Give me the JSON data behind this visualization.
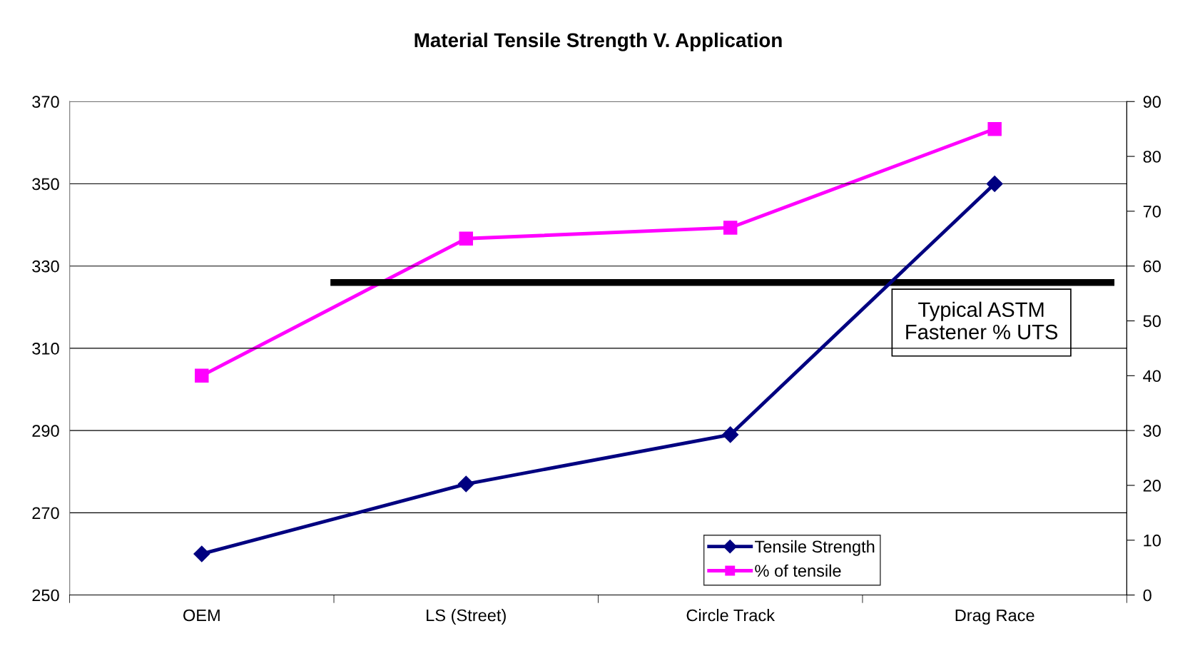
{
  "chart_data": {
    "type": "line",
    "title": "Material Tensile Strength V. Application",
    "categories": [
      "OEM",
      "LS (Street)",
      "Circle Track",
      "Drag Race"
    ],
    "series": [
      {
        "name": "Tensile Strength",
        "color": "#000080",
        "marker": "diamond",
        "values": [
          260,
          277,
          289,
          350
        ]
      },
      {
        "name": "% of tensile",
        "color": "#ff00ff",
        "marker": "square",
        "axis": "y2",
        "values": [
          40,
          65,
          67,
          85
        ]
      }
    ],
    "ylim": [
      250,
      370
    ],
    "yticks": [
      250,
      270,
      290,
      310,
      330,
      350,
      370
    ],
    "y2lim": [
      0,
      90
    ],
    "y2ticks": [
      0,
      10,
      20,
      30,
      40,
      50,
      60,
      70,
      80,
      90
    ],
    "ref_lines": [
      {
        "axis": "y2",
        "value": 57,
        "label": "Typical ASTM\nFastener % UTS",
        "color": "#000000"
      }
    ],
    "grid": "y",
    "legend": "bottom right",
    "line_style": "solid"
  }
}
